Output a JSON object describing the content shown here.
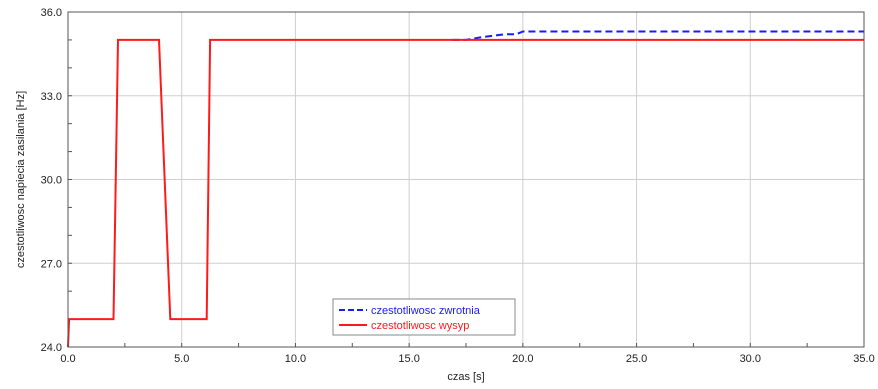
{
  "chart_data": {
    "type": "line",
    "xlabel": "czas [s]",
    "ylabel": "czestotliwosc napiecia zasilania [Hz]",
    "xlim": [
      0,
      35
    ],
    "ylim": [
      24,
      36
    ],
    "x_ticks": [
      0,
      5,
      10,
      15,
      20,
      25,
      30,
      35
    ],
    "x_tick_labels": [
      "0.0",
      "5.0",
      "10.0",
      "15.0",
      "20.0",
      "25.0",
      "30.0",
      "35.0"
    ],
    "y_ticks": [
      24,
      27,
      30,
      33,
      36
    ],
    "y_tick_labels": [
      "24.0",
      "27.0",
      "30.0",
      "33.0",
      "36.0"
    ],
    "grid": true,
    "legend_position": "bottom-center",
    "series": [
      {
        "name": "czestotliwosc zwrotnia",
        "color": "#1a1aff",
        "dash": "dashed",
        "x": [
          16.9,
          17.5,
          18.2,
          19.2,
          19.7,
          20.0,
          35.0
        ],
        "y": [
          35.0,
          35.0,
          35.1,
          35.2,
          35.2,
          35.3,
          35.3
        ]
      },
      {
        "name": "czestotliwosc wysyp",
        "color": "#ff1a1a",
        "dash": "solid",
        "x": [
          0.0,
          0.05,
          0.2,
          2.0,
          2.2,
          4.0,
          4.5,
          6.1,
          6.25,
          35.0
        ],
        "y": [
          24.0,
          25.0,
          25.0,
          25.0,
          35.0,
          35.0,
          25.0,
          25.0,
          35.0,
          35.0
        ]
      }
    ]
  }
}
